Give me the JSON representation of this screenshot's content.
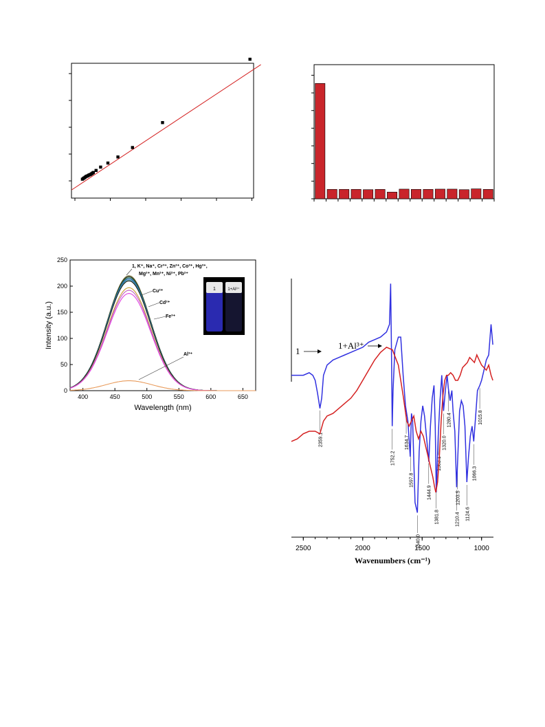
{
  "chart_data": [
    {
      "id": "scatter-fit",
      "type": "scatter",
      "colors": {
        "points": "#000000",
        "fit_line": "#d42020"
      },
      "xlim": [
        0,
        1
      ],
      "ylim": [
        0,
        1
      ],
      "x": [
        0.06,
        0.065,
        0.07,
        0.075,
        0.08,
        0.085,
        0.09,
        0.095,
        0.1,
        0.105,
        0.11,
        0.115,
        0.12,
        0.135,
        0.16,
        0.2,
        0.255,
        0.335,
        0.5,
        0.98
      ],
      "y": [
        0.14,
        0.145,
        0.15,
        0.155,
        0.16,
        0.163,
        0.166,
        0.17,
        0.173,
        0.176,
        0.18,
        0.185,
        0.19,
        0.205,
        0.23,
        0.26,
        0.305,
        0.375,
        0.56,
        1.03
      ],
      "fit": {
        "x": [
          0,
          1.04
        ],
        "y": [
          0.06,
          0.99
        ]
      }
    },
    {
      "id": "bar-selectivity",
      "type": "bar",
      "colors": {
        "bars": "#c9252b"
      },
      "ylim": [
        0,
        1
      ],
      "values": [
        0.86,
        0.07,
        0.07,
        0.07,
        0.068,
        0.07,
        0.05,
        0.072,
        0.07,
        0.07,
        0.072,
        0.072,
        0.068,
        0.074,
        0.07
      ]
    },
    {
      "id": "emission-spectra",
      "type": "line",
      "xlabel": "Wavelength (nm)",
      "ylabel": "Intensity (a.u.)",
      "xlim": [
        380,
        670
      ],
      "ylim": [
        0,
        250
      ],
      "xticks": [
        "400",
        "450",
        "500",
        "550",
        "600",
        "650"
      ],
      "yticks": [
        "0",
        "50",
        "100",
        "150",
        "200",
        "250"
      ],
      "series": [
        {
          "peak": 220,
          "center": 472,
          "width": 48,
          "color": "#6a6a2a"
        },
        {
          "peak": 218,
          "center": 472,
          "width": 48,
          "color": "#202020"
        },
        {
          "peak": 216,
          "center": 472,
          "width": 48,
          "color": "#2a8a5a"
        },
        {
          "peak": 214,
          "center": 472,
          "width": 48,
          "color": "#2a50c0"
        },
        {
          "peak": 212,
          "center": 472,
          "width": 48,
          "color": "#40a0a0"
        },
        {
          "peak": 210,
          "center": 472,
          "width": 48,
          "color": "#1a1a1a"
        },
        {
          "peak": 197,
          "center": 472,
          "width": 48,
          "color": "#c8a030"
        },
        {
          "peak": 192,
          "center": 472,
          "width": 48,
          "color": "#c060c0"
        },
        {
          "peak": 186,
          "center": 472,
          "width": 48,
          "color": "#e040e0"
        },
        {
          "peak": 19,
          "center": 472,
          "width": 50,
          "color": "#e89a5a"
        }
      ],
      "labels": {
        "group_line1": "1, K⁺, Na⁺, Cr³⁺, Zn²⁺, Co²⁺, Hg²⁺,",
        "group_line2": "Mg²⁺, Mn²⁺, Ni²⁺, Pb²⁺",
        "cu": "Cu²⁺",
        "cd": "Cd²⁺",
        "fe": "Fe³⁺",
        "al": "Al³⁺"
      },
      "inset": {
        "left_label": "1",
        "right_label": "1+Al³⁺",
        "colors": {
          "left": "#2a2ab0",
          "right": "#151530"
        }
      }
    },
    {
      "id": "ir-spectra",
      "type": "line",
      "xlabel": "Wavenumbers (cm⁻¹)",
      "xlim": [
        2600,
        900
      ],
      "ylim": [
        0,
        1
      ],
      "xticks": [
        "2500",
        "2000",
        "1500",
        "1000"
      ],
      "series": [
        {
          "label": "1",
          "color": "#3030e0",
          "points": [
            [
              2600,
              0.62
            ],
            [
              2550,
              0.62
            ],
            [
              2500,
              0.62
            ],
            [
              2450,
              0.63
            ],
            [
              2420,
              0.62
            ],
            [
              2400,
              0.6
            ],
            [
              2380,
              0.55
            ],
            [
              2360,
              0.49
            ],
            [
              2345,
              0.53
            ],
            [
              2330,
              0.62
            ],
            [
              2300,
              0.66
            ],
            [
              2250,
              0.68
            ],
            [
              2200,
              0.69
            ],
            [
              2150,
              0.7
            ],
            [
              2100,
              0.71
            ],
            [
              2050,
              0.72
            ],
            [
              2000,
              0.73
            ],
            [
              1950,
              0.75
            ],
            [
              1900,
              0.76
            ],
            [
              1850,
              0.77
            ],
            [
              1800,
              0.79
            ],
            [
              1775,
              0.82
            ],
            [
              1765,
              0.98
            ],
            [
              1758,
              0.72
            ],
            [
              1752,
              0.42
            ],
            [
              1745,
              0.56
            ],
            [
              1730,
              0.72
            ],
            [
              1700,
              0.77
            ],
            [
              1680,
              0.77
            ],
            [
              1660,
              0.62
            ],
            [
              1640,
              0.5
            ],
            [
              1620,
              0.44
            ],
            [
              1600,
              0.3
            ],
            [
              1590,
              0.47
            ],
            [
              1580,
              0.44
            ],
            [
              1560,
              0.12
            ],
            [
              1540,
              0.08
            ],
            [
              1525,
              0.32
            ],
            [
              1510,
              0.44
            ],
            [
              1495,
              0.5
            ],
            [
              1480,
              0.46
            ],
            [
              1460,
              0.36
            ],
            [
              1444,
              0.28
            ],
            [
              1430,
              0.42
            ],
            [
              1415,
              0.53
            ],
            [
              1400,
              0.58
            ],
            [
              1390,
              0.42
            ],
            [
              1381,
              0.16
            ],
            [
              1365,
              0.38
            ],
            [
              1350,
              0.52
            ],
            [
              1335,
              0.62
            ],
            [
              1320,
              0.48
            ],
            [
              1305,
              0.56
            ],
            [
              1290,
              0.62
            ],
            [
              1280,
              0.57
            ],
            [
              1265,
              0.52
            ],
            [
              1250,
              0.56
            ],
            [
              1240,
              0.48
            ],
            [
              1225,
              0.4
            ],
            [
              1210,
              0.18
            ],
            [
              1195,
              0.36
            ],
            [
              1185,
              0.48
            ],
            [
              1170,
              0.52
            ],
            [
              1155,
              0.5
            ],
            [
              1140,
              0.42
            ],
            [
              1124,
              0.2
            ],
            [
              1110,
              0.3
            ],
            [
              1095,
              0.38
            ],
            [
              1080,
              0.42
            ],
            [
              1066,
              0.36
            ],
            [
              1050,
              0.46
            ],
            [
              1035,
              0.56
            ],
            [
              1015,
              0.58
            ],
            [
              1000,
              0.6
            ],
            [
              980,
              0.64
            ],
            [
              960,
              0.68
            ],
            [
              940,
              0.7
            ],
            [
              920,
              0.82
            ],
            [
              905,
              0.74
            ]
          ]
        },
        {
          "label": "1+Al³⁺",
          "color": "#d42020",
          "points": [
            [
              2600,
              0.36
            ],
            [
              2550,
              0.37
            ],
            [
              2500,
              0.39
            ],
            [
              2450,
              0.4
            ],
            [
              2400,
              0.4
            ],
            [
              2360,
              0.39
            ],
            [
              2330,
              0.44
            ],
            [
              2300,
              0.46
            ],
            [
              2250,
              0.47
            ],
            [
              2200,
              0.49
            ],
            [
              2150,
              0.51
            ],
            [
              2100,
              0.53
            ],
            [
              2050,
              0.56
            ],
            [
              2000,
              0.6
            ],
            [
              1950,
              0.64
            ],
            [
              1900,
              0.68
            ],
            [
              1850,
              0.71
            ],
            [
              1800,
              0.73
            ],
            [
              1750,
              0.72
            ],
            [
              1700,
              0.66
            ],
            [
              1660,
              0.54
            ],
            [
              1630,
              0.44
            ],
            [
              1610,
              0.42
            ],
            [
              1590,
              0.44
            ],
            [
              1570,
              0.46
            ],
            [
              1550,
              0.4
            ],
            [
              1530,
              0.37
            ],
            [
              1510,
              0.4
            ],
            [
              1490,
              0.38
            ],
            [
              1470,
              0.34
            ],
            [
              1450,
              0.3
            ],
            [
              1430,
              0.26
            ],
            [
              1410,
              0.22
            ],
            [
              1395,
              0.18
            ],
            [
              1385,
              0.16
            ],
            [
              1370,
              0.2
            ],
            [
              1355,
              0.3
            ],
            [
              1340,
              0.44
            ],
            [
              1325,
              0.54
            ],
            [
              1310,
              0.6
            ],
            [
              1295,
              0.62
            ],
            [
              1280,
              0.62
            ],
            [
              1260,
              0.63
            ],
            [
              1240,
              0.62
            ],
            [
              1220,
              0.6
            ],
            [
              1200,
              0.6
            ],
            [
              1180,
              0.62
            ],
            [
              1160,
              0.65
            ],
            [
              1140,
              0.66
            ],
            [
              1120,
              0.67
            ],
            [
              1100,
              0.69
            ],
            [
              1080,
              0.68
            ],
            [
              1060,
              0.67
            ],
            [
              1040,
              0.7
            ],
            [
              1020,
              0.68
            ],
            [
              1000,
              0.66
            ],
            [
              980,
              0.65
            ],
            [
              960,
              0.64
            ],
            [
              940,
              0.66
            ],
            [
              920,
              0.62
            ],
            [
              905,
              0.6
            ]
          ]
        }
      ],
      "annotations": [
        {
          "text": "2359.1",
          "x": 2359
        },
        {
          "text": "1752.2",
          "x": 1752
        },
        {
          "text": "1634.7",
          "x": 1634
        },
        {
          "text": "1597.8",
          "x": 1598
        },
        {
          "text": "1540.0",
          "x": 1540
        },
        {
          "text": "1444.9",
          "x": 1445
        },
        {
          "text": "1381.8",
          "x": 1382
        },
        {
          "text": "1363.1",
          "x": 1363
        },
        {
          "text": "1320.0",
          "x": 1320
        },
        {
          "text": "1280.4",
          "x": 1280
        },
        {
          "text": "1210.4",
          "x": 1210
        },
        {
          "text": "1203.5",
          "x": 1203
        },
        {
          "text": "1124.6",
          "x": 1124
        },
        {
          "text": "1066.3",
          "x": 1066
        },
        {
          "text": "1015.8",
          "x": 1015
        }
      ]
    }
  ]
}
